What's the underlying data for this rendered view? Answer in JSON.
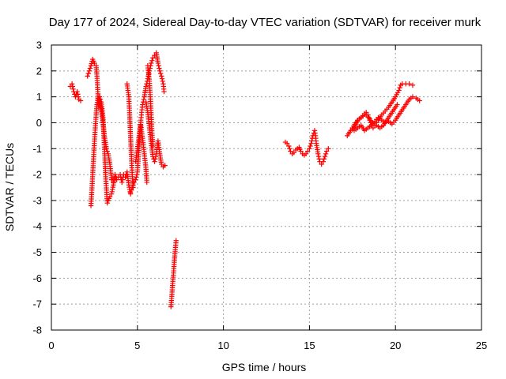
{
  "chart_data": {
    "type": "scatter",
    "title": "Day 177 of 2024, Sidereal Day-to-day VTEC variation (SDTVAR) for receiver murk",
    "xlabel": "GPS time / hours",
    "ylabel": "SDTVAR / TECUs",
    "xlim": [
      0,
      25
    ],
    "ylim": [
      -8,
      3
    ],
    "xticks": [
      0,
      5,
      10,
      15,
      20,
      25
    ],
    "yticks": [
      -8,
      -7,
      -6,
      -5,
      -4,
      -3,
      -2,
      -1,
      0,
      1,
      2,
      3
    ],
    "grid": true,
    "marker": "+",
    "series": [
      {
        "name": "SDTVAR",
        "color": "#ff0000",
        "segments": [
          [
            [
              1.1,
              1.4
            ],
            [
              1.2,
              1.5
            ],
            [
              1.3,
              1.2
            ],
            [
              1.4,
              1.0
            ],
            [
              1.5,
              1.2
            ],
            [
              1.6,
              0.9
            ],
            [
              1.7,
              0.85
            ]
          ],
          [
            [
              2.1,
              1.8
            ],
            [
              2.2,
              2.0
            ],
            [
              2.3,
              2.2
            ],
            [
              2.4,
              2.45
            ],
            [
              2.5,
              2.3
            ],
            [
              2.6,
              2.2
            ],
            [
              2.65,
              1.8
            ],
            [
              2.7,
              1.2
            ],
            [
              2.75,
              0.6
            ],
            [
              2.8,
              1.0
            ],
            [
              2.9,
              0.8
            ],
            [
              3.0,
              0.2
            ],
            [
              3.05,
              -0.5
            ],
            [
              3.1,
              -1.2
            ],
            [
              3.15,
              -2.0
            ],
            [
              3.2,
              -2.6
            ],
            [
              3.25,
              -3.1
            ],
            [
              3.3,
              -3.0
            ],
            [
              3.4,
              -2.85
            ],
            [
              3.5,
              -2.75
            ],
            [
              3.6,
              -2.4
            ],
            [
              3.7,
              -2.0
            ],
            [
              3.8,
              -2.2
            ],
            [
              3.9,
              -2.1
            ],
            [
              4.0,
              -2.0
            ],
            [
              4.1,
              -2.3
            ],
            [
              4.2,
              -2.0
            ],
            [
              4.3,
              -2.1
            ],
            [
              4.4,
              -1.9
            ],
            [
              4.5,
              -2.4
            ],
            [
              4.6,
              -2.75
            ]
          ],
          [
            [
              2.3,
              -3.2
            ],
            [
              2.35,
              -2.6
            ],
            [
              2.4,
              -2.0
            ],
            [
              2.45,
              -1.4
            ],
            [
              2.5,
              -0.8
            ],
            [
              2.55,
              -0.2
            ],
            [
              2.6,
              0.3
            ],
            [
              2.65,
              0.7
            ],
            [
              2.7,
              0.95
            ],
            [
              2.8,
              0.9
            ],
            [
              2.9,
              0.5
            ],
            [
              3.0,
              0.0
            ],
            [
              3.1,
              -0.6
            ],
            [
              3.2,
              -1.0
            ],
            [
              3.3,
              -1.2
            ],
            [
              3.4,
              -1.6
            ],
            [
              3.5,
              -2.2
            ],
            [
              3.6,
              -2.3
            ]
          ],
          [
            [
              4.4,
              1.5
            ],
            [
              4.5,
              1.0
            ],
            [
              4.55,
              0.3
            ],
            [
              4.6,
              -0.5
            ],
            [
              4.65,
              -1.3
            ],
            [
              4.7,
              -2.0
            ],
            [
              4.75,
              -2.5
            ]
          ],
          [
            [
              4.6,
              -2.7
            ],
            [
              4.7,
              -2.5
            ],
            [
              4.8,
              -2.3
            ],
            [
              4.9,
              -2.2
            ],
            [
              5.0,
              -1.9
            ],
            [
              5.05,
              -1.4
            ],
            [
              5.1,
              -0.9
            ],
            [
              5.15,
              -0.4
            ],
            [
              5.2,
              0.1
            ],
            [
              5.25,
              0.4
            ],
            [
              5.3,
              0.7
            ],
            [
              5.4,
              1.0
            ],
            [
              5.5,
              1.4
            ],
            [
              5.6,
              1.7
            ],
            [
              5.7,
              2.0
            ],
            [
              5.8,
              2.3
            ],
            [
              5.9,
              2.5
            ],
            [
              6.0,
              2.6
            ],
            [
              6.1,
              2.7
            ],
            [
              6.2,
              2.3
            ],
            [
              6.3,
              2.0
            ],
            [
              6.4,
              1.8
            ],
            [
              6.5,
              1.5
            ],
            [
              6.55,
              1.2
            ]
          ],
          [
            [
              4.9,
              -1.5
            ],
            [
              5.0,
              -1.0
            ],
            [
              5.1,
              -0.5
            ],
            [
              5.2,
              -0.1
            ],
            [
              5.3,
              -0.6
            ],
            [
              5.4,
              -1.2
            ],
            [
              5.5,
              -1.8
            ],
            [
              5.55,
              -2.3
            ]
          ],
          [
            [
              5.5,
              0.8
            ],
            [
              5.6,
              0.4
            ],
            [
              5.7,
              -0.2
            ],
            [
              5.8,
              -0.8
            ],
            [
              5.9,
              -1.3
            ],
            [
              6.0,
              -1.5
            ],
            [
              6.1,
              -1.2
            ],
            [
              6.2,
              -0.7
            ],
            [
              6.3,
              -1.2
            ],
            [
              6.4,
              -1.6
            ],
            [
              6.5,
              -1.7
            ],
            [
              6.6,
              -1.65
            ]
          ],
          [
            [
              5.6,
              2.2
            ],
            [
              5.7,
              1.6
            ],
            [
              5.75,
              1.0
            ],
            [
              5.8,
              0.3
            ],
            [
              5.85,
              -0.4
            ],
            [
              5.9,
              -0.9
            ]
          ],
          [
            [
              6.95,
              -7.1
            ],
            [
              7.0,
              -6.7
            ],
            [
              7.05,
              -6.2
            ],
            [
              7.1,
              -5.8
            ],
            [
              7.15,
              -5.3
            ],
            [
              7.2,
              -4.9
            ],
            [
              7.25,
              -4.55
            ]
          ],
          [
            [
              13.6,
              -0.75
            ],
            [
              13.7,
              -0.8
            ],
            [
              13.8,
              -0.9
            ],
            [
              13.9,
              -1.1
            ],
            [
              14.0,
              -1.2
            ],
            [
              14.1,
              -1.15
            ],
            [
              14.2,
              -1.05
            ],
            [
              14.3,
              -1.0
            ],
            [
              14.4,
              -0.95
            ],
            [
              14.5,
              -1.1
            ],
            [
              14.6,
              -1.2
            ],
            [
              14.7,
              -1.25
            ],
            [
              14.8,
              -1.2
            ],
            [
              14.9,
              -1.1
            ],
            [
              15.0,
              -1.0
            ],
            [
              15.1,
              -0.8
            ],
            [
              15.2,
              -0.5
            ],
            [
              15.3,
              -0.3
            ],
            [
              15.35,
              -0.5
            ],
            [
              15.4,
              -0.8
            ],
            [
              15.5,
              -1.2
            ],
            [
              15.6,
              -1.5
            ],
            [
              15.7,
              -1.6
            ],
            [
              15.8,
              -1.5
            ],
            [
              15.9,
              -1.3
            ],
            [
              16.0,
              -1.1
            ],
            [
              16.1,
              -1.0
            ]
          ],
          [
            [
              17.2,
              -0.5
            ],
            [
              17.4,
              -0.3
            ],
            [
              17.6,
              -0.2
            ],
            [
              17.8,
              0.1
            ],
            [
              18.0,
              0.2
            ],
            [
              18.2,
              0.35
            ],
            [
              18.3,
              0.4
            ],
            [
              18.4,
              0.3
            ],
            [
              18.5,
              0.1
            ],
            [
              18.6,
              -0.1
            ],
            [
              18.7,
              -0.2
            ],
            [
              18.8,
              -0.1
            ],
            [
              18.9,
              0.0
            ],
            [
              19.0,
              0.1
            ],
            [
              19.2,
              0.3
            ],
            [
              19.4,
              0.45
            ],
            [
              19.6,
              0.6
            ],
            [
              19.8,
              0.8
            ],
            [
              20.0,
              1.0
            ],
            [
              20.2,
              1.25
            ],
            [
              20.3,
              1.45
            ],
            [
              20.4,
              1.5
            ],
            [
              20.6,
              1.5
            ],
            [
              20.8,
              1.5
            ],
            [
              21.0,
              1.45
            ]
          ],
          [
            [
              17.6,
              -0.3
            ],
            [
              17.8,
              -0.2
            ],
            [
              18.0,
              -0.1
            ],
            [
              18.2,
              -0.3
            ],
            [
              18.4,
              -0.2
            ],
            [
              18.6,
              -0.1
            ],
            [
              18.8,
              0.05
            ],
            [
              19.0,
              0.2
            ],
            [
              19.2,
              0.1
            ],
            [
              19.4,
              0.0
            ],
            [
              19.6,
              0.05
            ],
            [
              19.8,
              -0.05
            ],
            [
              20.0,
              0.1
            ],
            [
              20.2,
              0.3
            ],
            [
              20.4,
              0.5
            ],
            [
              20.6,
              0.7
            ],
            [
              20.8,
              0.9
            ],
            [
              21.0,
              1.0
            ],
            [
              21.2,
              0.95
            ],
            [
              21.4,
              0.85
            ]
          ],
          [
            [
              17.5,
              -0.2
            ],
            [
              17.7,
              0.0
            ],
            [
              17.9,
              0.15
            ],
            [
              18.1,
              0.25
            ],
            [
              18.3,
              0.3
            ],
            [
              18.5,
              0.15
            ],
            [
              18.7,
              -0.05
            ],
            [
              18.9,
              -0.1
            ],
            [
              19.1,
              -0.2
            ],
            [
              19.3,
              -0.1
            ],
            [
              19.5,
              0.1
            ],
            [
              19.7,
              0.3
            ],
            [
              19.9,
              0.5
            ],
            [
              20.1,
              0.7
            ]
          ]
        ]
      }
    ]
  }
}
